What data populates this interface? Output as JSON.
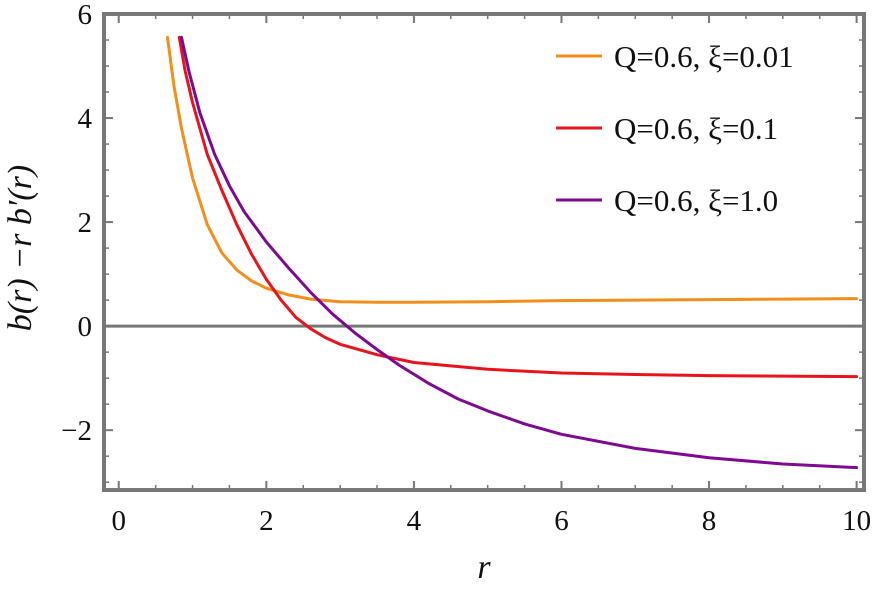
{
  "chart_data": {
    "type": "line",
    "title": "",
    "xlabel": "r",
    "ylabel": "b(r) −r b′(r)",
    "xlim": [
      -0.2,
      10.1
    ],
    "ylim": [
      -3.15,
      6.0
    ],
    "xticks": [
      0,
      2,
      4,
      6,
      8,
      10
    ],
    "yticks": [
      -2,
      0,
      2,
      4,
      6
    ],
    "xtick_labels": [
      "0",
      "2",
      "4",
      "6",
      "8",
      "10"
    ],
    "ytick_labels": [
      "−2",
      "0",
      "2",
      "4",
      "6"
    ],
    "grid": false,
    "zero_line": true,
    "legend_position": "top-right",
    "series": [
      {
        "name": "Q=0.6, ξ=0.01",
        "color": "#f28e1b",
        "x": [
          0.66,
          0.75,
          0.85,
          1.0,
          1.2,
          1.4,
          1.6,
          1.8,
          2.0,
          2.3,
          2.6,
          3.0,
          3.5,
          4.0,
          5.0,
          6.0,
          7.0,
          8.0,
          9.0,
          10.0
        ],
        "y": [
          5.55,
          4.6,
          3.8,
          2.85,
          1.95,
          1.4,
          1.08,
          0.87,
          0.73,
          0.6,
          0.52,
          0.47,
          0.46,
          0.46,
          0.47,
          0.49,
          0.5,
          0.51,
          0.52,
          0.53
        ]
      },
      {
        "name": "Q=0.6, ξ=0.1",
        "color": "#e8141c",
        "x": [
          0.82,
          0.9,
          1.0,
          1.2,
          1.4,
          1.6,
          1.8,
          2.0,
          2.2,
          2.4,
          2.6,
          2.8,
          3.0,
          3.5,
          4.0,
          5.0,
          6.0,
          7.0,
          8.0,
          9.0,
          10.0
        ],
        "y": [
          5.55,
          4.9,
          4.3,
          3.3,
          2.6,
          1.95,
          1.38,
          0.9,
          0.5,
          0.17,
          -0.05,
          -0.22,
          -0.35,
          -0.55,
          -0.7,
          -0.83,
          -0.9,
          -0.93,
          -0.95,
          -0.96,
          -0.97
        ]
      },
      {
        "name": "Q=0.6, ξ=1.0",
        "color": "#7d0a8f",
        "x": [
          0.85,
          0.95,
          1.1,
          1.3,
          1.5,
          1.7,
          2.0,
          2.3,
          2.6,
          2.9,
          3.2,
          3.5,
          3.8,
          4.2,
          4.6,
          5.0,
          5.5,
          6.0,
          7.0,
          8.0,
          9.0,
          10.0
        ],
        "y": [
          5.55,
          4.9,
          4.1,
          3.3,
          2.7,
          2.2,
          1.62,
          1.12,
          0.65,
          0.23,
          -0.13,
          -0.45,
          -0.75,
          -1.1,
          -1.4,
          -1.63,
          -1.88,
          -2.08,
          -2.35,
          -2.53,
          -2.65,
          -2.72
        ]
      }
    ]
  }
}
